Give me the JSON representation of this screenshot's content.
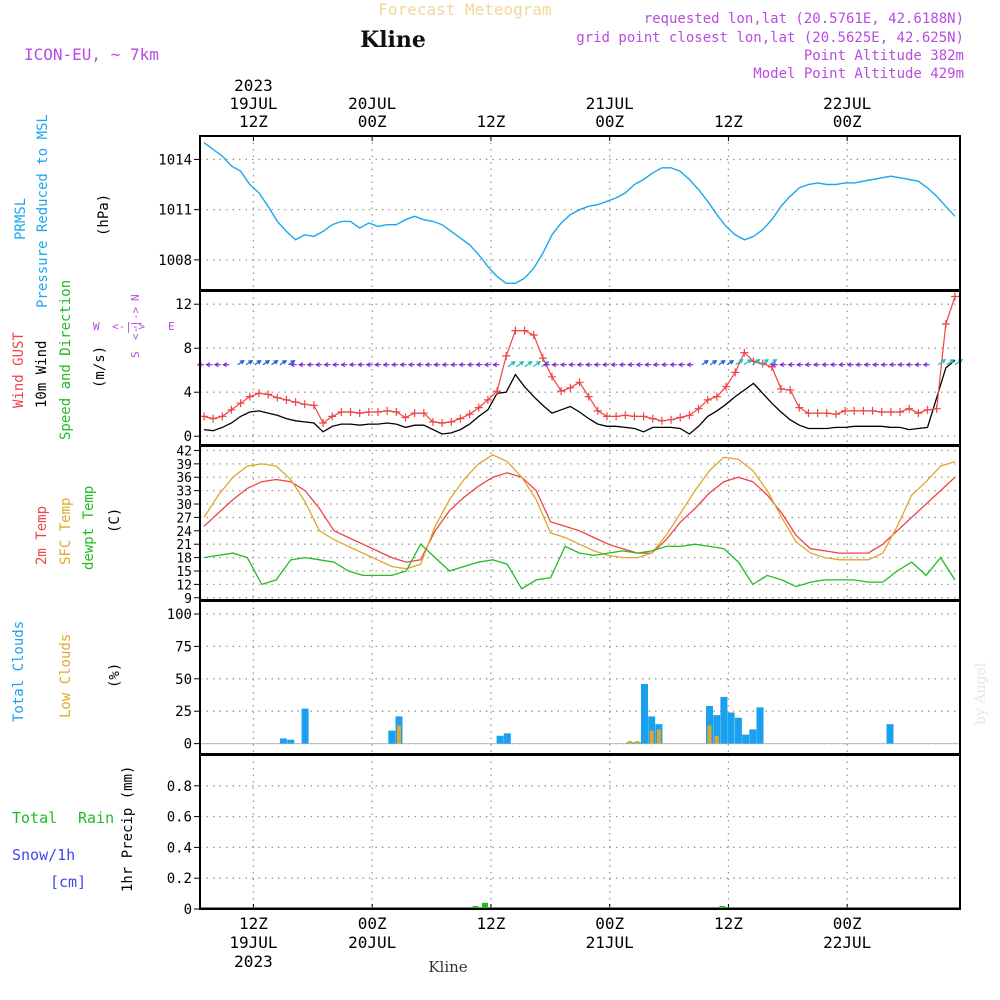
{
  "header": {
    "title": "Forecast Meteogram",
    "place": "Kline",
    "model": "ICON-EU, ~ 7km",
    "requested": "requested lon,lat (20.5761E, 42.6188N)",
    "gridpoint": "grid point closest lon,lat (20.5625E, 42.625N)",
    "point_alt": "Point Altitude 382m",
    "model_alt": "Model Point Altitude 429m",
    "credit": "by Angel",
    "footer_place": "Kline"
  },
  "time_axis": {
    "top": [
      {
        "year": "2023",
        "day": "19JUL",
        "hour": "12Z"
      },
      {
        "year": "",
        "day": "20JUL",
        "hour": "00Z"
      },
      {
        "year": "",
        "day": "",
        "hour": "12Z"
      },
      {
        "year": "",
        "day": "21JUL",
        "hour": "00Z"
      },
      {
        "year": "",
        "day": "",
        "hour": "12Z"
      },
      {
        "year": "",
        "day": "22JUL",
        "hour": "00Z"
      }
    ],
    "bottom": [
      {
        "hour": "12Z",
        "day": "19JUL",
        "year": "2023"
      },
      {
        "hour": "00Z",
        "day": "20JUL",
        "year": ""
      },
      {
        "hour": "12Z",
        "day": "",
        "year": ""
      },
      {
        "hour": "00Z",
        "day": "21JUL",
        "year": ""
      },
      {
        "hour": "12Z",
        "day": "",
        "year": ""
      },
      {
        "hour": "00Z",
        "day": "22JUL",
        "year": ""
      }
    ],
    "start_hour": 7.5,
    "end_hour": 71.5,
    "major_hours": [
      12,
      22,
      32,
      42,
      52,
      62
    ]
  },
  "chart_data": [
    {
      "type": "line",
      "panel": "pressure",
      "labels": {
        "a": "PRMSL",
        "b": "Pressure Reduced to MSL",
        "unit": "(hPa)"
      },
      "ylim": [
        1006.2,
        1015.4
      ],
      "yticks": [
        1008,
        1011,
        1014
      ],
      "series": [
        {
          "name": "PRMSL",
          "color": "#1aa7ec",
          "values": [
            1015.0,
            1014.6,
            1014.2,
            1013.6,
            1013.3,
            1012.5,
            1012.0,
            1011.2,
            1010.3,
            1009.7,
            1009.2,
            1009.5,
            1009.4,
            1009.7,
            1010.1,
            1010.3,
            1010.3,
            1009.9,
            1010.2,
            1010.0,
            1010.1,
            1010.1,
            1010.4,
            1010.6,
            1010.4,
            1010.3,
            1010.1,
            1009.7,
            1009.3,
            1008.9,
            1008.3,
            1007.6,
            1007.0,
            1006.6,
            1006.6,
            1006.9,
            1007.5,
            1008.4,
            1009.5,
            1010.2,
            1010.7,
            1011.0,
            1011.2,
            1011.3,
            1011.5,
            1011.7,
            1012.0,
            1012.5,
            1012.8,
            1013.2,
            1013.5,
            1013.5,
            1013.3,
            1012.8,
            1012.2,
            1011.5,
            1010.7,
            1010.0,
            1009.5,
            1009.2,
            1009.4,
            1009.8,
            1010.4,
            1011.2,
            1011.8,
            1012.3,
            1012.5,
            1012.6,
            1012.5,
            1012.5,
            1012.6,
            1012.6,
            1012.7,
            1012.8,
            1012.9,
            1013.0,
            1012.9,
            1012.8,
            1012.7,
            1012.3,
            1011.8,
            1011.2,
            1010.6
          ]
        }
      ]
    },
    {
      "type": "line",
      "panel": "wind",
      "labels": {
        "a": "Wind GUST",
        "b": "10m Wind",
        "c": "Speed and Direction",
        "unit": "(m/s)",
        "compass_n": "N",
        "compass_s": "S",
        "compass_w": "W",
        "compass_e": "E",
        "compass_mid": "<-|->"
      },
      "ylim": [
        -0.8,
        13.2
      ],
      "yticks": [
        0,
        4,
        8,
        12
      ],
      "series": [
        {
          "name": "Wind GUST",
          "color": "#ee4444",
          "marker": "+",
          "values": [
            1.8,
            1.6,
            1.8,
            2.4,
            3.0,
            3.6,
            3.9,
            3.8,
            3.5,
            3.3,
            3.1,
            2.9,
            2.8,
            1.2,
            1.8,
            2.2,
            2.2,
            2.1,
            2.2,
            2.2,
            2.3,
            2.2,
            1.7,
            2.1,
            2.1,
            1.3,
            1.2,
            1.3,
            1.6,
            2.0,
            2.6,
            3.3,
            4.1,
            7.3,
            9.6,
            9.6,
            9.2,
            7.1,
            5.4,
            4.1,
            4.4,
            4.9,
            3.6,
            2.3,
            1.8,
            1.8,
            1.9,
            1.8,
            1.8,
            1.6,
            1.4,
            1.5,
            1.7,
            1.9,
            2.5,
            3.3,
            3.6,
            4.5,
            5.8,
            7.6,
            6.8,
            6.6,
            6.3,
            4.3,
            4.2,
            2.6,
            2.1,
            2.1,
            2.1,
            2.0,
            2.3,
            2.3,
            2.3,
            2.3,
            2.2,
            2.2,
            2.2,
            2.5,
            2.1,
            2.4,
            2.5,
            10.2,
            12.7
          ]
        },
        {
          "name": "10m Wind",
          "color": "#000000",
          "values": [
            0.6,
            0.5,
            0.8,
            1.2,
            1.8,
            2.2,
            2.3,
            2.1,
            1.9,
            1.6,
            1.4,
            1.3,
            1.2,
            0.4,
            0.9,
            1.1,
            1.1,
            1.0,
            1.1,
            1.1,
            1.2,
            1.1,
            0.8,
            1.0,
            1.0,
            0.6,
            0.2,
            0.3,
            0.6,
            1.1,
            1.8,
            2.4,
            3.9,
            4.0,
            5.6,
            4.5,
            3.6,
            2.8,
            2.1,
            2.4,
            2.7,
            2.2,
            1.6,
            1.1,
            0.9,
            0.9,
            0.8,
            0.7,
            0.4,
            0.8,
            0.8,
            0.8,
            0.7,
            0.2,
            0.9,
            1.8,
            2.3,
            2.9,
            3.6,
            4.2,
            4.8,
            3.9,
            3.0,
            2.2,
            1.5,
            1.0,
            0.7,
            0.7,
            0.7,
            0.8,
            0.8,
            0.9,
            0.9,
            0.9,
            0.9,
            0.8,
            0.8,
            0.6,
            0.7,
            0.8,
            3.5,
            6.2,
            6.9
          ]
        }
      ],
      "arrow_y": 6.5
    },
    {
      "type": "line",
      "panel": "temperature",
      "labels": {
        "a": "2m Temp",
        "b": "SFC Temp",
        "c": "dewpt Temp",
        "unit": "(C)"
      },
      "ylim": [
        8.5,
        43.0
      ],
      "yticks": [
        9,
        12,
        15,
        18,
        21,
        24,
        27,
        30,
        33,
        36,
        39,
        42
      ],
      "series": [
        {
          "name": "2m Temp",
          "color": "#ee4444",
          "values": [
            25,
            28,
            31,
            33.5,
            35,
            35.5,
            35,
            33,
            29,
            24,
            22.5,
            21,
            19.5,
            18,
            17,
            17.5,
            24,
            28.5,
            31.5,
            34,
            36,
            37,
            36,
            33,
            26,
            25,
            24,
            22.5,
            21,
            20,
            19,
            19,
            22,
            26,
            29,
            32.5,
            35,
            36,
            35,
            32,
            28,
            23,
            20,
            19.5,
            19,
            19,
            19,
            21,
            24,
            27,
            30,
            33,
            36
          ]
        },
        {
          "name": "SFC Temp",
          "color": "#e0a82a",
          "values": [
            27,
            32,
            36,
            38.5,
            39,
            38.5,
            35.5,
            30.5,
            24,
            22,
            20.5,
            19,
            17.5,
            16,
            15.5,
            16.5,
            25,
            31,
            35.5,
            39,
            41,
            39.5,
            36,
            31,
            23.5,
            22.5,
            21,
            19.5,
            18.5,
            18,
            18,
            19,
            23,
            28,
            33,
            37.5,
            40.5,
            40,
            37.5,
            33,
            27,
            21.5,
            19,
            18,
            17.5,
            17.5,
            17.5,
            19,
            25,
            32,
            35,
            38.5,
            39.5
          ]
        },
        {
          "name": "dewpt Temp",
          "color": "#22bb22",
          "values": [
            18,
            18.5,
            19,
            18,
            12,
            13,
            17.5,
            18,
            17.5,
            17,
            15,
            14,
            14,
            14,
            15,
            21,
            18,
            15,
            16,
            17,
            17.5,
            16.5,
            11,
            13,
            13.5,
            20.5,
            19,
            18.5,
            19,
            19.5,
            19,
            19.5,
            20.5,
            20.5,
            21,
            20.5,
            20,
            17,
            12,
            14,
            13,
            11.5,
            12.5,
            13,
            13,
            13,
            12.5,
            12.5,
            15,
            17,
            14,
            18,
            13
          ]
        }
      ]
    },
    {
      "type": "bar",
      "panel": "clouds",
      "labels": {
        "a": "Total Clouds",
        "b": "Low Clouds",
        "unit": "(%)"
      },
      "ylim": [
        -8,
        110
      ],
      "yticks": [
        0,
        25,
        50,
        75,
        100
      ],
      "series": [
        {
          "name": "Total Clouds",
          "color": "#1aa0ee",
          "values": [
            0,
            0,
            0,
            0,
            0,
            0,
            0,
            0,
            0,
            0,
            0,
            4,
            3,
            0,
            27,
            0,
            0,
            0,
            0,
            0,
            0,
            0,
            0,
            0,
            0,
            0,
            10,
            21,
            0,
            0,
            0,
            0,
            0,
            0,
            0,
            0,
            0,
            0,
            0,
            0,
            0,
            6,
            8,
            0,
            0,
            0,
            0,
            0,
            0,
            0,
            0,
            0,
            0,
            0,
            0,
            0,
            0,
            0,
            0,
            1,
            1,
            46,
            21,
            15,
            0,
            0,
            0,
            0,
            0,
            0,
            29,
            22,
            36,
            24,
            20,
            7,
            11,
            28,
            0,
            0,
            0,
            0,
            0,
            0,
            0,
            0,
            0,
            0,
            0,
            0,
            0,
            0,
            0,
            0,
            0,
            15,
            0,
            0,
            0,
            0,
            0,
            0,
            0,
            0,
            0
          ]
        },
        {
          "name": "Low Clouds",
          "color": "#e0a82a",
          "values": [
            0,
            0,
            0,
            0,
            0,
            0,
            0,
            0,
            0,
            0,
            0,
            0,
            0,
            0,
            0,
            0,
            0,
            0,
            0,
            0,
            0,
            0,
            0,
            0,
            0,
            0,
            0,
            14,
            0,
            0,
            0,
            0,
            0,
            0,
            0,
            0,
            0,
            0,
            0,
            0,
            0,
            0,
            0,
            0,
            0,
            0,
            0,
            0,
            0,
            0,
            0,
            0,
            0,
            0,
            0,
            0,
            0,
            0,
            0,
            2,
            2,
            0,
            10,
            11,
            0,
            0,
            0,
            0,
            0,
            0,
            14,
            6,
            0,
            0,
            0,
            0,
            0,
            0,
            0,
            0,
            0,
            0,
            0,
            0,
            0,
            0,
            0,
            0,
            0,
            0,
            0,
            0,
            0,
            0,
            0,
            0,
            0,
            0,
            0,
            0,
            0,
            0,
            0,
            0,
            0
          ]
        }
      ]
    },
    {
      "type": "bar",
      "panel": "precip",
      "labels": {
        "a": "Total",
        "a2": "Rain",
        "b": "Snow/1h",
        "b2": "[cm]",
        "unit": "1hr Precip (mm)"
      },
      "ylim": [
        0,
        1.0
      ],
      "yticks": [
        0,
        0.2,
        0.4,
        0.6,
        0.8
      ],
      "series": [
        {
          "name": "Total Rain",
          "color": "#22bb22",
          "values": [
            {
              "h": 30.7,
              "v": 0.012
            },
            {
              "h": 31.5,
              "v": 0.04
            },
            {
              "h": 51.5,
              "v": 0.01
            }
          ]
        }
      ]
    }
  ]
}
